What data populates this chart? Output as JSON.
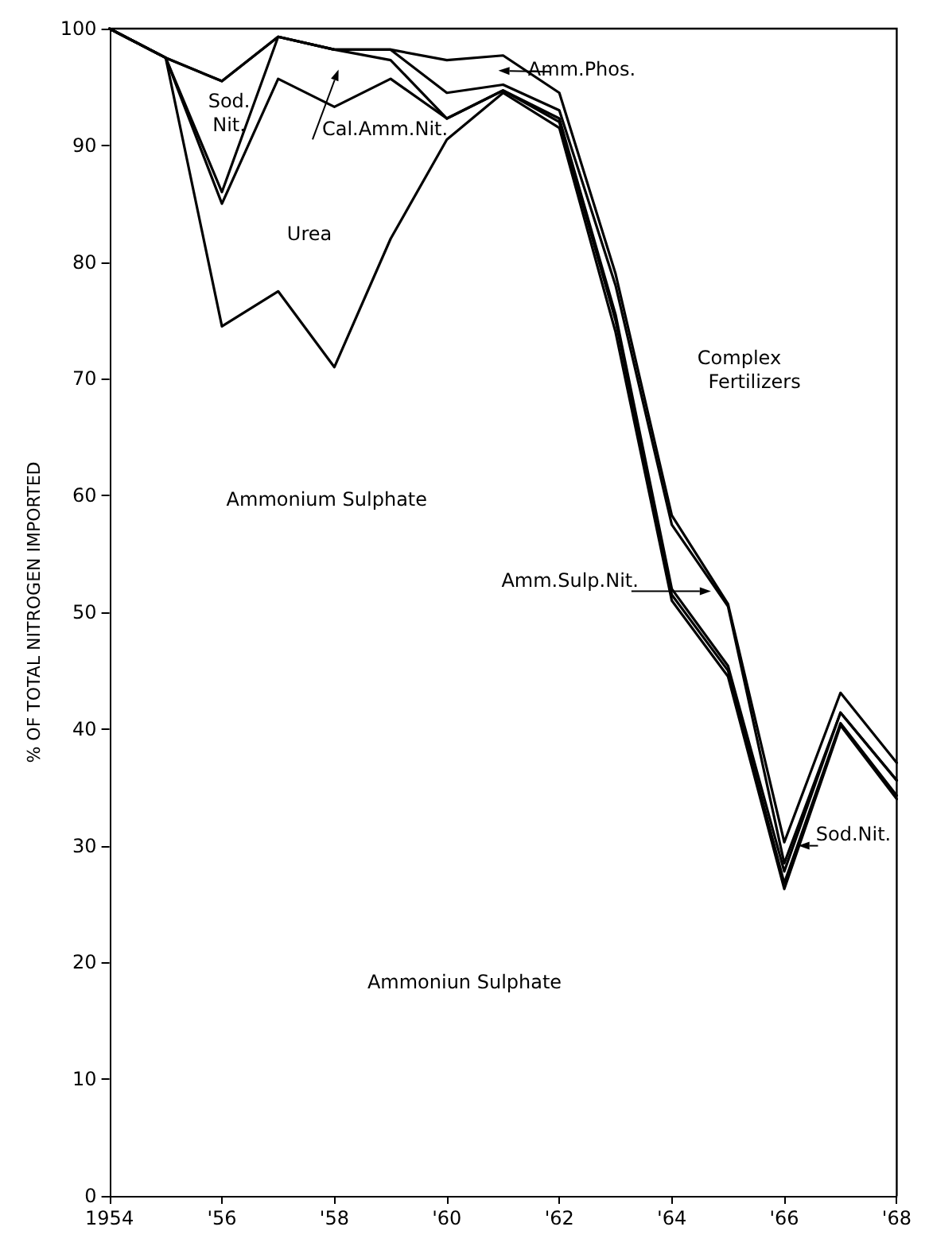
{
  "chart_data": {
    "type": "line",
    "ylabel": "% OF TOTAL NITROGEN IMPORTED",
    "x": [
      1954,
      1955,
      1956,
      1957,
      1958,
      1959,
      1960,
      1961,
      1962,
      1963,
      1964,
      1965,
      1966,
      1967,
      1968
    ],
    "series": [
      {
        "color": "#000000",
        "values": [
          100,
          97.5,
          74.5,
          77.5,
          71,
          82,
          90.5,
          94.5,
          91.5,
          74,
          51,
          44.5,
          26.3,
          40.3,
          34
        ]
      },
      {
        "color": "#000000",
        "values": [
          100,
          97.5,
          85,
          95.7,
          93.3,
          95.7,
          92.3,
          94.7,
          92,
          75,
          51.5,
          45,
          26.8,
          40.5,
          34.3
        ]
      },
      {
        "color": "#000000",
        "values": [
          100,
          97.5,
          86,
          99.3,
          98.2,
          97.3,
          92.3,
          94.7,
          92.3,
          75.5,
          52,
          45.4,
          27.8,
          41.4,
          35.6
        ]
      },
      {
        "color": "#000000",
        "values": [
          100,
          97.5,
          95.5,
          99.3,
          98.2,
          98.2,
          94.5,
          95.2,
          93,
          78,
          57.5,
          50.5,
          28.5,
          41.4,
          35.6
        ]
      },
      {
        "color": "#000000",
        "values": [
          100,
          97.5,
          95.5,
          99.3,
          98.2,
          98.2,
          97.3,
          97.7,
          94.5,
          79,
          58.3,
          50.7,
          30.3,
          43.1,
          37.1
        ]
      }
    ],
    "xlim": [
      1954,
      1968
    ],
    "xticks": [
      {
        "value": 1954,
        "label": "1954"
      },
      {
        "value": 1956,
        "label": "'56"
      },
      {
        "value": 1958,
        "label": "'58"
      },
      {
        "value": 1960,
        "label": "'60"
      },
      {
        "value": 1962,
        "label": "'62"
      },
      {
        "value": 1964,
        "label": "'64"
      },
      {
        "value": 1966,
        "label": "'66"
      },
      {
        "value": 1968,
        "label": "'68"
      }
    ],
    "ylim": [
      0,
      100
    ],
    "yticks": [
      0,
      10,
      20,
      30,
      40,
      50,
      60,
      70,
      80,
      90,
      100
    ],
    "grid": false,
    "marker": "none",
    "line_style": "solid",
    "annotations": [
      "Sod.\nNit.",
      "Urea",
      "Cal.Amm.Nit.",
      "Amm.Phos.",
      "Complex\n     Fertilizers",
      "Ammonium Sulphate",
      "Ammoniun Sulphate",
      "Amm.Sulp.Nit.",
      "Sod.Nit."
    ]
  }
}
